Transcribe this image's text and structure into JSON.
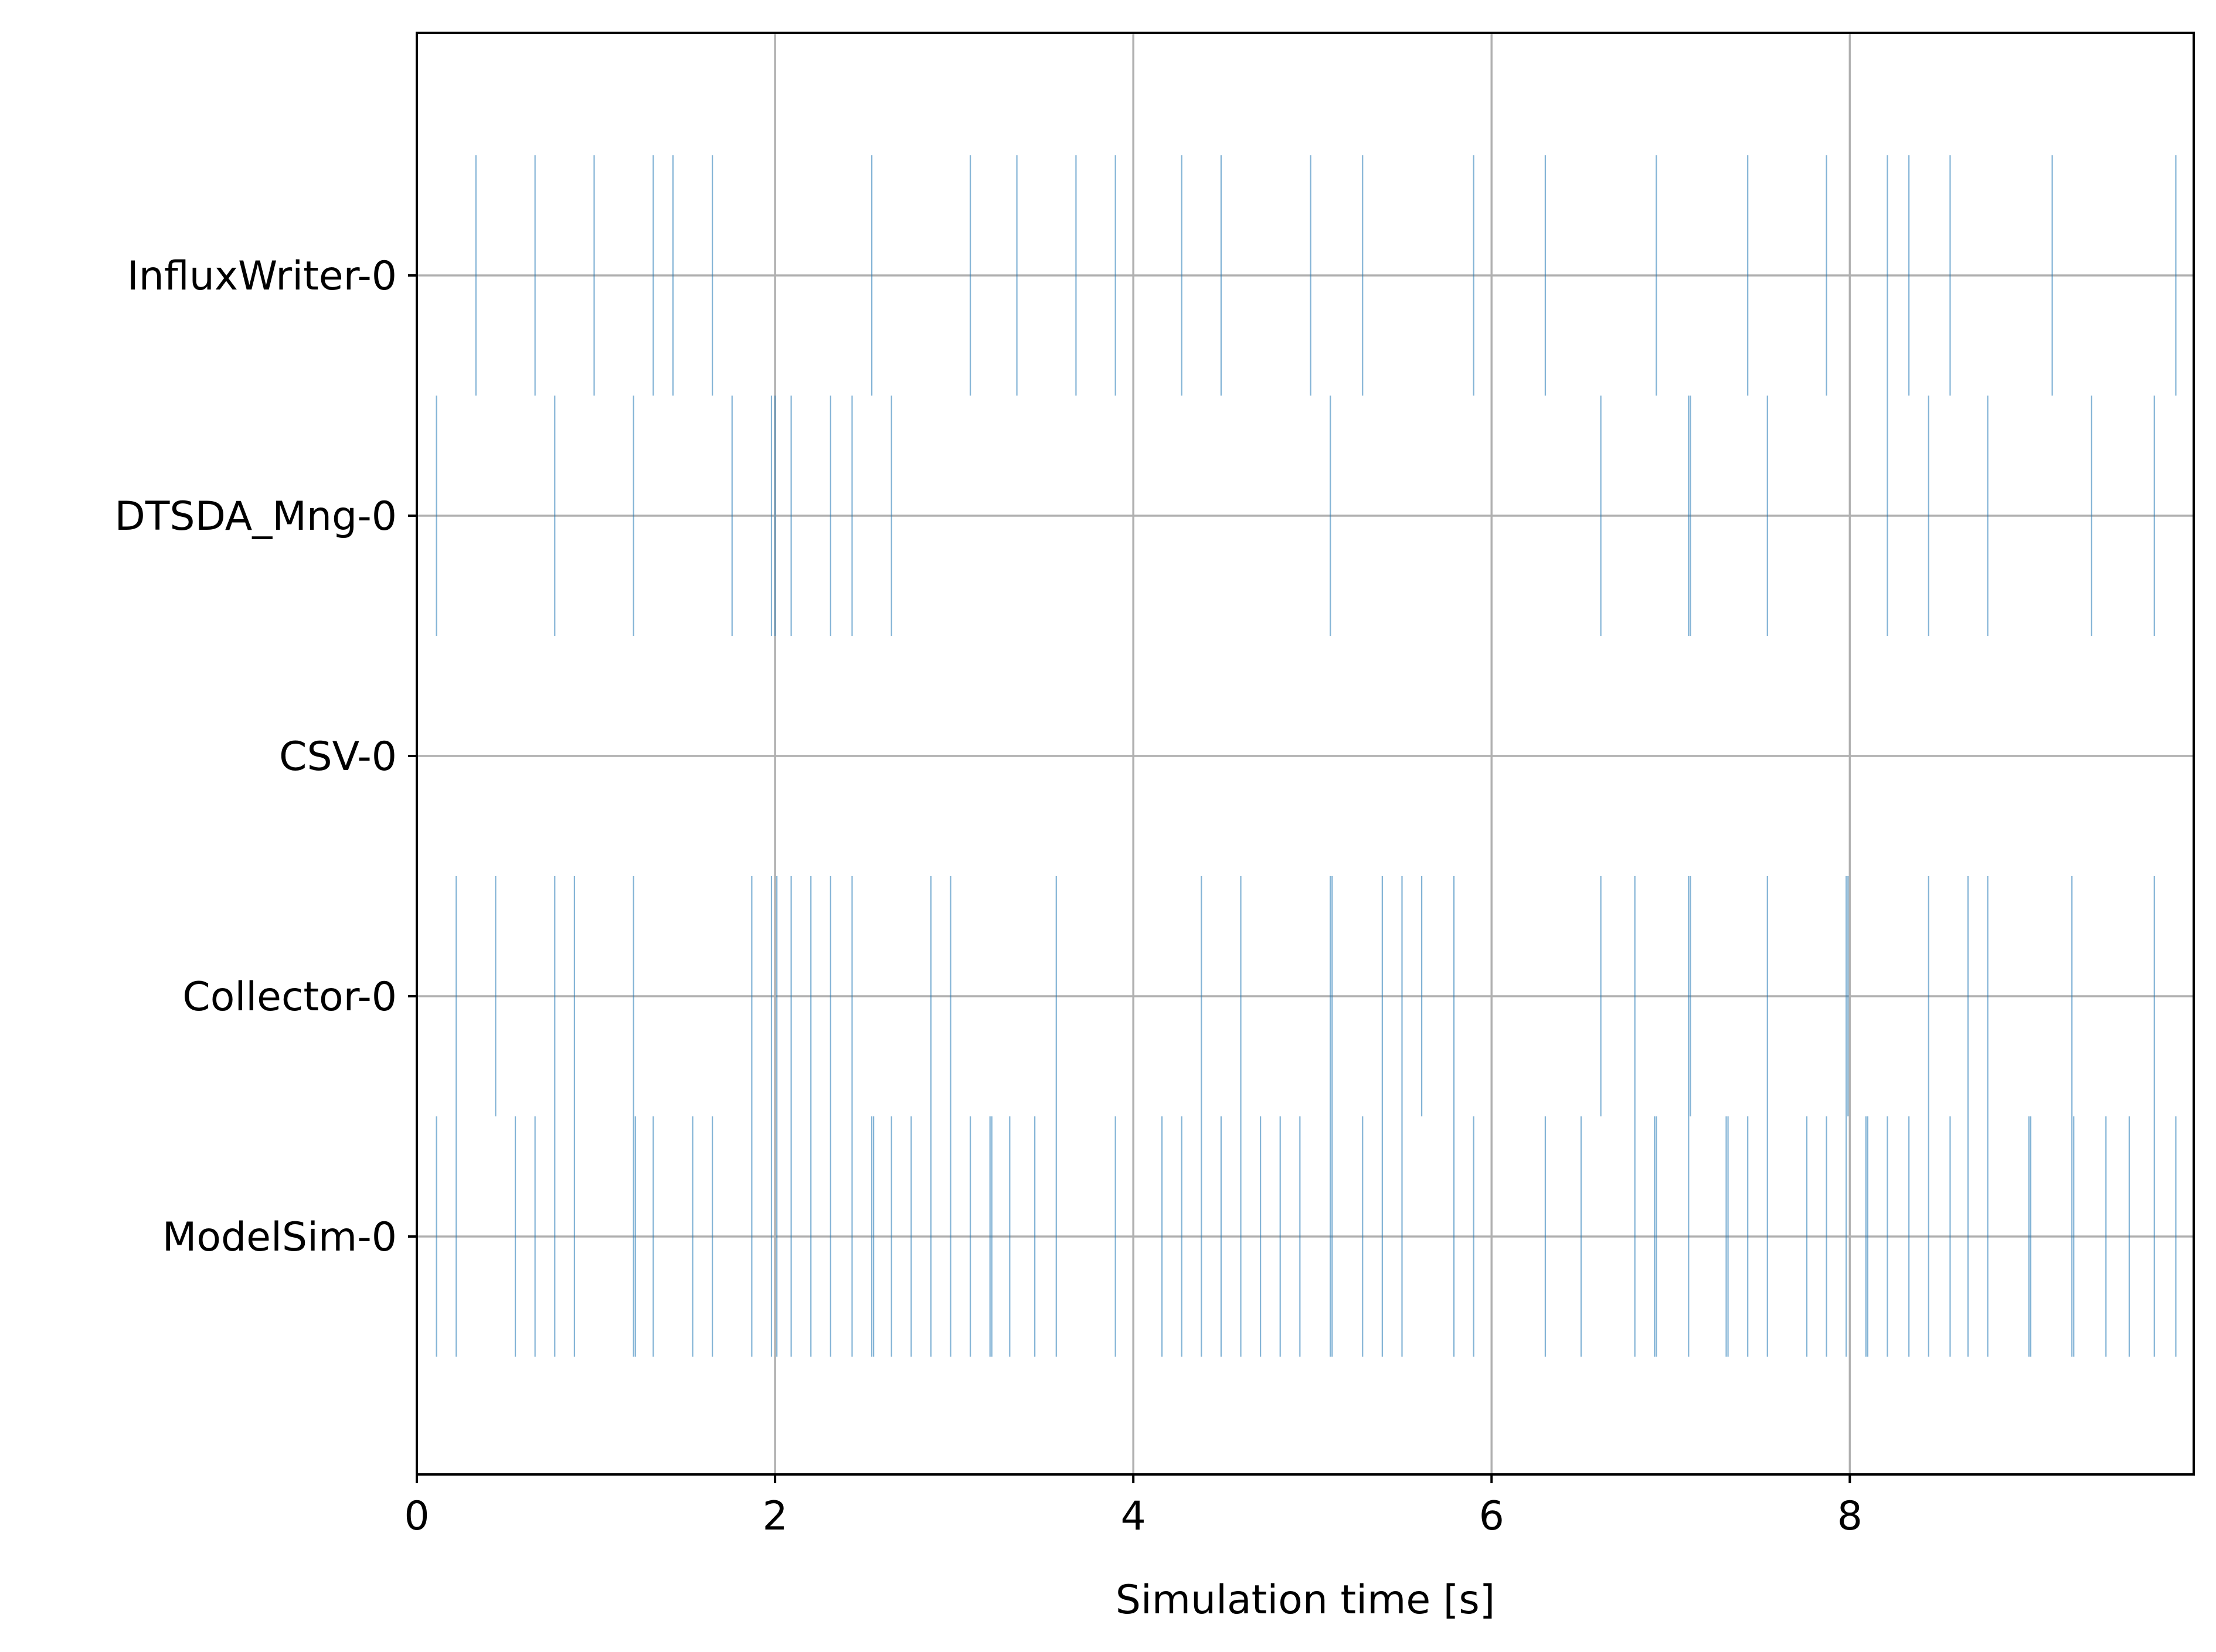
{
  "chart_data": {
    "type": "event_raster",
    "title": "",
    "xlabel": "Simulation time [s]",
    "ylabel": "",
    "xlim": [
      0,
      9.92
    ],
    "xticks": [
      0,
      2,
      4,
      6,
      8
    ],
    "grid": true,
    "legend": "none",
    "event_color": "#1f77b4",
    "categories": [
      "InfluxWriter-0",
      "DTSDA_Mng-0",
      "CSV-0",
      "Collector-0",
      "ModelSim-0"
    ],
    "series": [
      {
        "category": "InfluxWriter-0",
        "events": [
          0.33,
          0.66,
          0.99,
          1.32,
          1.43,
          1.65,
          2.54,
          3.09,
          3.35,
          3.68,
          3.9,
          4.27,
          4.49,
          4.99,
          5.28,
          5.9,
          6.3,
          6.92,
          7.43,
          7.87,
          8.21,
          8.33,
          8.56,
          9.13,
          9.82
        ]
      },
      {
        "category": "DTSDA_Mng-0",
        "events": [
          0.11,
          0.77,
          1.21,
          1.76,
          1.98,
          2.0,
          2.09,
          2.31,
          2.43,
          2.65,
          5.1,
          6.61,
          7.1,
          7.11,
          7.54,
          8.21,
          8.44,
          8.77,
          9.35,
          9.7
        ]
      },
      {
        "category": "CSV-0",
        "events": []
      },
      {
        "category": "Collector-0",
        "events": [
          0.22,
          0.44,
          0.77,
          0.88,
          1.21,
          1.87,
          1.98,
          2.01,
          2.09,
          2.2,
          2.31,
          2.43,
          2.87,
          2.98,
          3.57,
          4.38,
          4.6,
          5.1,
          5.11,
          5.39,
          5.5,
          5.61,
          5.79,
          6.61,
          6.8,
          7.1,
          7.11,
          7.54,
          7.98,
          7.99,
          8.44,
          8.66,
          8.77,
          9.24,
          9.7
        ]
      },
      {
        "category": "ModelSim-0",
        "events": [
          0.11,
          0.22,
          0.55,
          0.66,
          0.77,
          0.88,
          1.21,
          1.22,
          1.32,
          1.54,
          1.65,
          1.87,
          1.98,
          2.01,
          2.09,
          2.2,
          2.31,
          2.43,
          2.54,
          2.55,
          2.65,
          2.76,
          2.87,
          2.98,
          3.09,
          3.2,
          3.21,
          3.31,
          3.45,
          3.57,
          3.9,
          4.16,
          4.27,
          4.38,
          4.49,
          4.6,
          4.71,
          4.82,
          4.93,
          5.1,
          5.11,
          5.28,
          5.39,
          5.5,
          5.79,
          5.9,
          6.3,
          6.5,
          6.8,
          6.91,
          6.92,
          7.1,
          7.31,
          7.32,
          7.43,
          7.54,
          7.76,
          7.87,
          7.98,
          8.09,
          8.1,
          8.21,
          8.33,
          8.44,
          8.56,
          8.66,
          8.77,
          9.0,
          9.01,
          9.24,
          9.25,
          9.43,
          9.56,
          9.7,
          9.82
        ]
      }
    ]
  }
}
